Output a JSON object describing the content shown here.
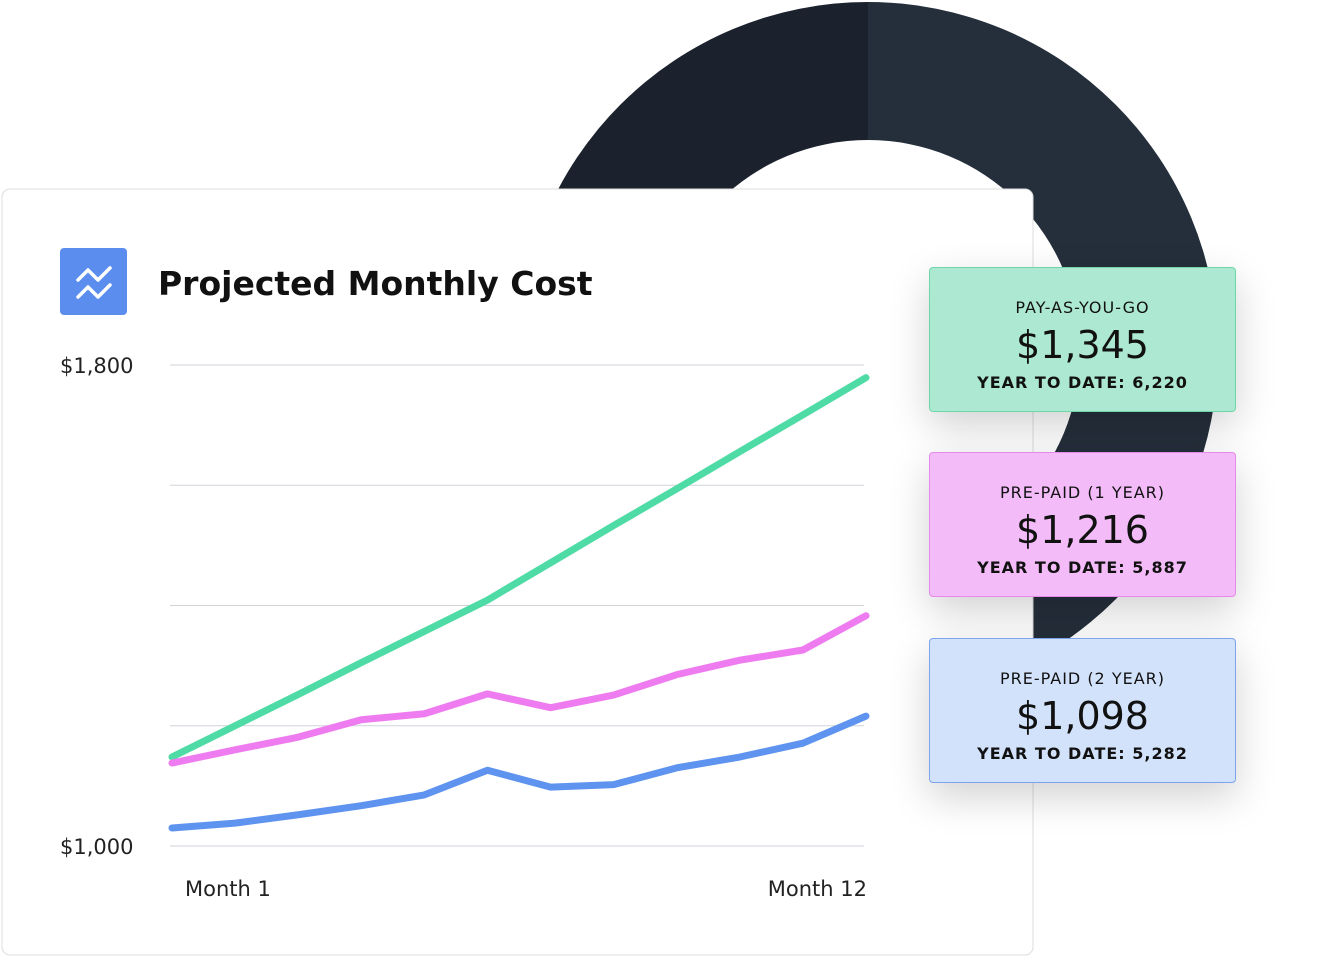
{
  "chart_data": {
    "type": "line",
    "title": "Projected Monthly Cost",
    "categories": [
      "Month 1",
      null,
      null,
      null,
      null,
      null,
      null,
      null,
      null,
      null,
      null,
      "Month 12"
    ],
    "series": [
      {
        "name": "PAY-AS-YOU-GO",
        "color": "#4fdba5",
        "values": [
          1148,
          1200,
          1252,
          1305,
          1357,
          1409,
          1471,
          1533,
          1594,
          1656,
          1717,
          1779
        ]
      },
      {
        "name": "PRE-PAID (1 YEAR)",
        "color": "#ee7cf0",
        "values": [
          1138,
          1160,
          1181,
          1210,
          1220,
          1253,
          1230,
          1251,
          1285,
          1309,
          1326,
          1383
        ]
      },
      {
        "name": "PRE-PAID (2 YEAR)",
        "color": "#5e93ef",
        "values": [
          1030,
          1038,
          1052,
          1067,
          1085,
          1126,
          1098,
          1102,
          1130,
          1148,
          1171,
          1216
        ]
      }
    ],
    "ylim": [
      1000,
      1800
    ],
    "yticks": [
      {
        "value": 1000,
        "label": "$1,000"
      },
      {
        "value": 1800,
        "label": "$1,800"
      }
    ],
    "ygrid": [
      1000,
      1200,
      1400,
      1600,
      1800
    ],
    "cards": [
      {
        "price": "$1,345",
        "ytd": "YEAR TO DATE: 6,220",
        "fill": "#ade9d2",
        "border": "#6fd6a9"
      },
      {
        "price": "$1,216",
        "ytd": "YEAR TO DATE: 5,887",
        "fill": "#f3bbf8",
        "border": "#e58ae8"
      },
      {
        "price": "$1,098",
        "ytd": "YEAR TO DATE: 5,282",
        "fill": "#d3e2fb",
        "border": "#7ea4ec"
      }
    ]
  }
}
